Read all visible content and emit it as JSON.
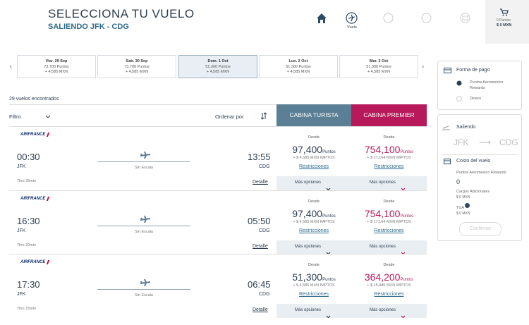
{
  "header": {
    "title": "SELECCIONA TU VUELO",
    "subtitle": "SALIENDO JFK - CDG"
  },
  "nav": {
    "flight_label": "Vuelo",
    "cart_points": "0 Puntos",
    "cart_total": "$ 0 MXN"
  },
  "date_tabs": [
    {
      "day": "Vier. 29 Sep",
      "points": "73,700 Puntos",
      "price": "+ 4,585 MXN"
    },
    {
      "day": "Sab. 30 Sep",
      "points": "73,700 Puntos",
      "price": "+ 4,585 MXN"
    },
    {
      "day": "Dom. 1 Oct",
      "points": "51,300 Puntos",
      "price": "+ 4,585 MXN"
    },
    {
      "day": "Lun. 2 Oct",
      "points": "51,300 Puntos",
      "price": "+ 4,585 MXN"
    },
    {
      "day": "Mar. 3 Oct",
      "points": "51,300 Puntos",
      "price": "+ 4,585 MXN"
    }
  ],
  "results": {
    "count": "29 vuelos encontrados",
    "filter": "Filtro",
    "sort": "Ordenar por",
    "economy": "CABINA TURISTA",
    "premier": "CABINA PREMIER"
  },
  "flights": [
    {
      "airline": "AIRFRANCE",
      "departure_time": "00:30",
      "departure_airport": "JFK",
      "stops": "Sin Escala",
      "arrival_time": "13:55",
      "arrival_airport": "CDG",
      "duration": "7hrs 25min",
      "details": "Detalle",
      "fares": [
        {
          "label": "Desde",
          "points": "97,400",
          "unit": "Puntos",
          "taxes": "+ $ 4,585 MXN IMPTOS",
          "restrictions": "Restricciones",
          "more": "Más opciones"
        },
        {
          "label": "Desde",
          "points": "754,100",
          "unit": "Puntos",
          "taxes": "+ $ 17,164 MXN IMPTOS",
          "restrictions": "Restricciones",
          "more": "Más opciones"
        }
      ]
    },
    {
      "airline": "AIRFRANCE",
      "departure_time": "16:30",
      "departure_airport": "JFK",
      "stops": "Sin Escala",
      "arrival_time": "05:50",
      "arrival_airport": "CDG",
      "duration": "7hrs 20min",
      "details": "Detalle",
      "fares": [
        {
          "label": "Desde",
          "points": "97,400",
          "unit": "Puntos",
          "taxes": "+ $ 4,585 MXN IMPTOS",
          "restrictions": "Restricciones",
          "more": "Más opciones"
        },
        {
          "label": "Desde",
          "points": "754,100",
          "unit": "Puntos",
          "taxes": "+ $ 17,164 MXN IMPTOS",
          "restrictions": "Restricciones",
          "more": "Más opciones"
        }
      ]
    },
    {
      "airline": "AIRFRANCE",
      "departure_time": "17:30",
      "departure_airport": "JFK",
      "stops": "Sin Escala",
      "arrival_time": "06:45",
      "arrival_airport": "CDG",
      "duration": "7hrs 15min",
      "details": "Detalle",
      "fares": [
        {
          "label": "Desde",
          "points": "51,300",
          "unit": "Puntos",
          "taxes": "+ $ 4,585 MXN IMPTOS",
          "restrictions": "Restricciones",
          "more": "Más opciones"
        },
        {
          "label": "Desde",
          "points": "364,200",
          "unit": "Puntos",
          "taxes": "+ $ 15,486 MXN IMPTOS",
          "restrictions": "Restricciones",
          "more": "Más opciones"
        }
      ]
    }
  ],
  "sidebar": {
    "payment_title": "Forma de pago",
    "payment_points": "Puntos Aeromexico Rewards",
    "payment_money": "Dinero",
    "departing": "Saliendo",
    "origin": "JFK",
    "destination": "CDG",
    "cost_title": "Costo del vuelo",
    "cost_points_label": "Puntos Aeromexico Rewards",
    "cost_points": "0",
    "extra_label": "Cargos Adicionales",
    "extra_value": "$ 0 MXN",
    "tua_label": "TUA",
    "tua_value": "$ 0 MXN",
    "confirm": "Confirmar"
  }
}
